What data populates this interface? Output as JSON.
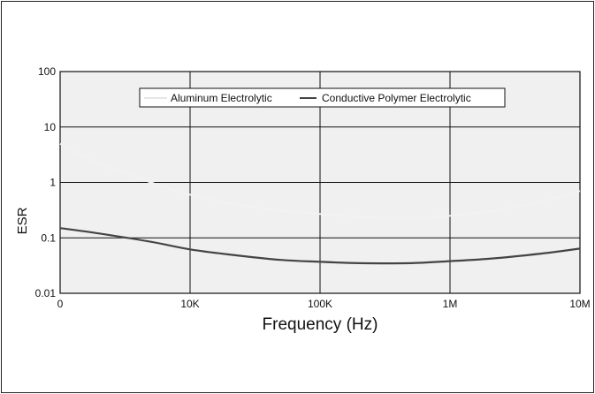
{
  "chart_data": {
    "type": "line",
    "title": "",
    "xlabel": "Frequency (Hz)",
    "ylabel": "ESR",
    "x_scale": "log",
    "y_scale": "log",
    "xlim": [
      1000,
      10000000
    ],
    "ylim": [
      0.01,
      100
    ],
    "x_tick_labels": [
      "0",
      "10K",
      "100K",
      "1M",
      "10M"
    ],
    "y_tick_labels": [
      "100",
      "10",
      "1",
      "0.1",
      "0.01"
    ],
    "grid": true,
    "legend_position": "top-center",
    "series": [
      {
        "name": "Aluminum Electrolytic",
        "color": "#f2f2f2",
        "x": [
          1000,
          2000,
          5000,
          10000,
          20000,
          50000,
          100000,
          200000,
          500000,
          1000000,
          2000000,
          5000000,
          10000000
        ],
        "y": [
          5.0,
          2.2,
          1.0,
          0.6,
          0.42,
          0.31,
          0.27,
          0.24,
          0.23,
          0.25,
          0.3,
          0.45,
          0.7
        ]
      },
      {
        "name": "Conductive Polymer Electrolytic",
        "color": "#444444",
        "x": [
          1000,
          2000,
          5000,
          10000,
          20000,
          50000,
          100000,
          200000,
          500000,
          1000000,
          2000000,
          5000000,
          10000000
        ],
        "y": [
          0.15,
          0.12,
          0.085,
          0.062,
          0.05,
          0.04,
          0.037,
          0.035,
          0.035,
          0.038,
          0.042,
          0.052,
          0.064
        ]
      }
    ]
  }
}
